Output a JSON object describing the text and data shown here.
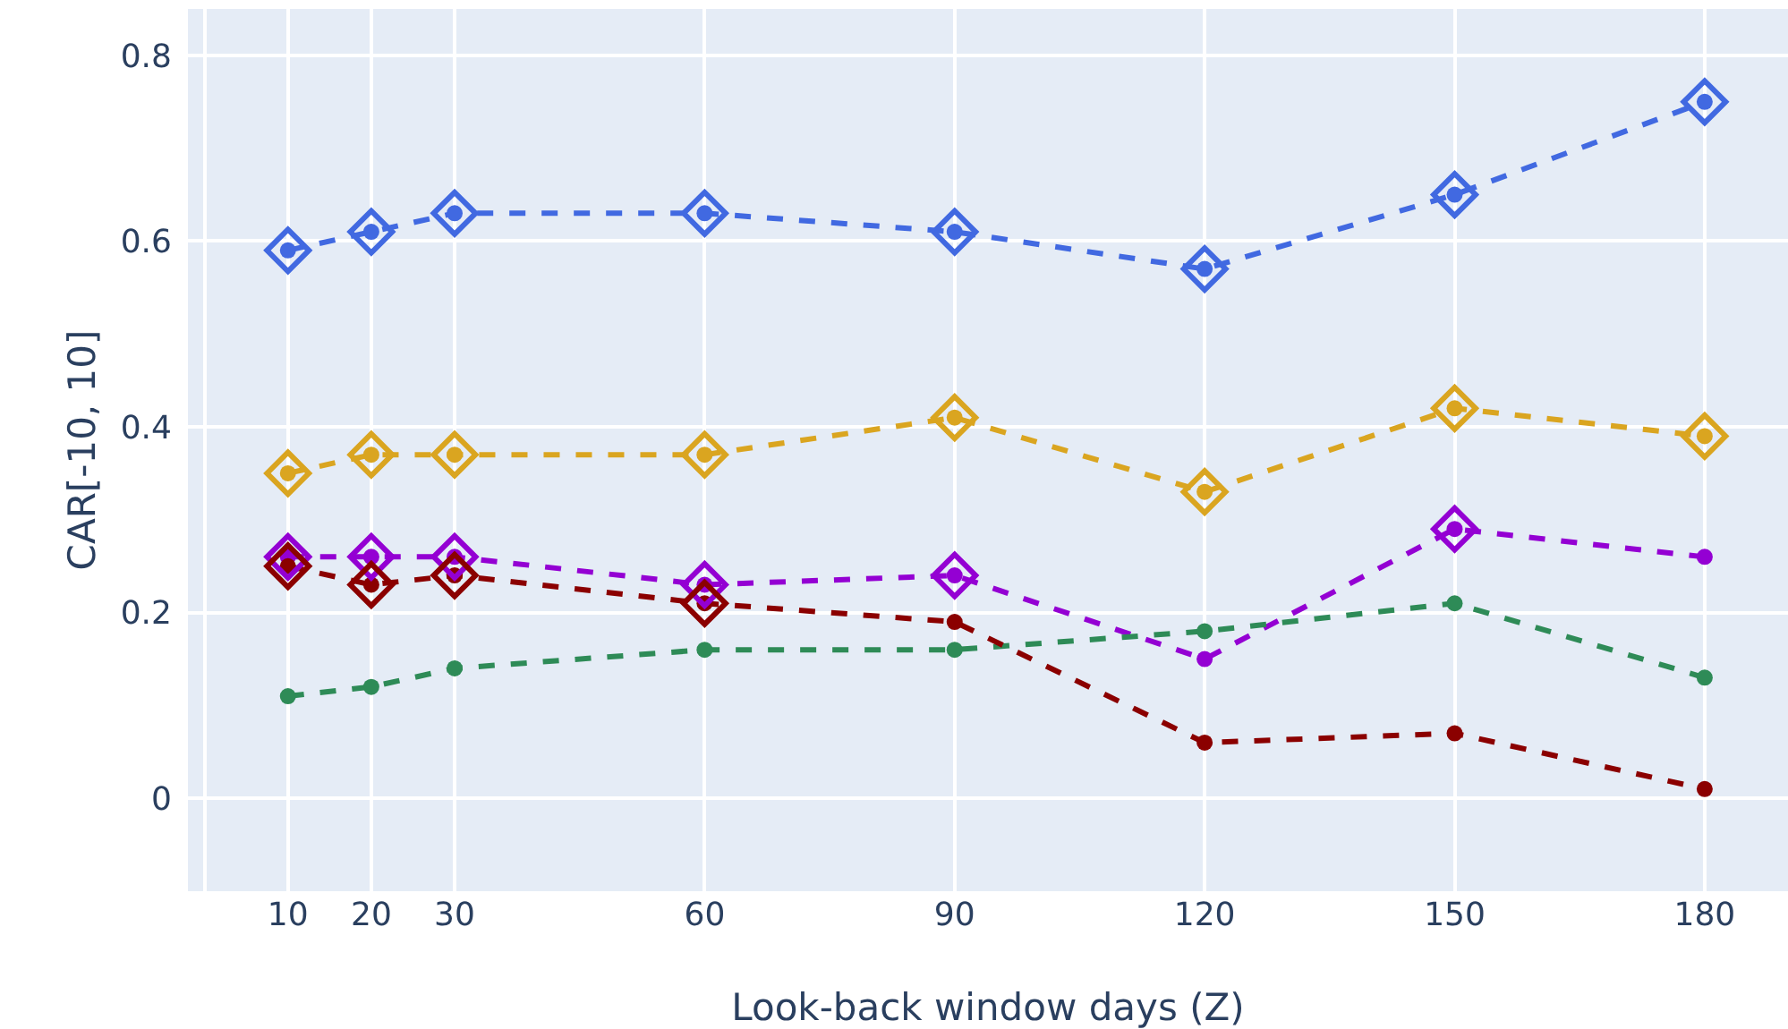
{
  "chart_data": {
    "type": "line",
    "xlabel": "Look-back window days (Z)",
    "ylabel": "CAR[-10, 10]",
    "x": [
      10,
      20,
      30,
      60,
      90,
      120,
      150,
      180
    ],
    "xlim": [
      -2,
      190
    ],
    "xticks": [
      10,
      20,
      30,
      60,
      90,
      120,
      150,
      180
    ],
    "ylim": [
      -0.1,
      0.85
    ],
    "yticks": [
      0,
      0.2,
      0.4,
      0.6,
      0.8
    ],
    "grid": true,
    "line_style": "dashed",
    "marker": "circle",
    "series": [
      {
        "color": "#4169e1",
        "values": [
          0.59,
          0.61,
          0.63,
          0.63,
          0.61,
          0.57,
          0.65,
          0.75
        ]
      },
      {
        "color": "#daa520",
        "values": [
          0.35,
          0.37,
          0.37,
          0.37,
          0.41,
          0.33,
          0.42,
          0.39
        ]
      },
      {
        "color": "#9400d3",
        "values": [
          0.26,
          0.26,
          0.26,
          0.23,
          0.24,
          0.15,
          0.29,
          0.26
        ]
      },
      {
        "color": "#2e8b57",
        "values": [
          0.11,
          0.12,
          0.14,
          0.16,
          0.16,
          0.18,
          0.21,
          0.13
        ]
      },
      {
        "color": "#8b0000",
        "values": [
          0.25,
          0.23,
          0.24,
          0.21,
          0.19,
          0.06,
          0.07,
          0.01
        ]
      },
      {
        "type": "scatter",
        "marker": "diamond",
        "color": "#4169e1",
        "values": [
          0.59,
          0.61,
          0.63,
          0.63,
          0.61,
          0.57,
          0.65,
          0.75
        ]
      },
      {
        "type": "scatter",
        "marker": "diamond",
        "color": "#daa520",
        "values": [
          0.35,
          0.37,
          0.37,
          0.37,
          0.41,
          0.33,
          0.42,
          0.39
        ]
      },
      {
        "type": "scatter",
        "marker": "diamond",
        "color": "#9400d3",
        "values": [
          0.26,
          0.26,
          0.26,
          0.23,
          0.24,
          null,
          0.29,
          null
        ]
      },
      {
        "type": "scatter",
        "marker": "diamond",
        "color": "#8b0000",
        "values": [
          0.25,
          0.23,
          0.24,
          0.21,
          null,
          null,
          null,
          null
        ]
      }
    ]
  }
}
